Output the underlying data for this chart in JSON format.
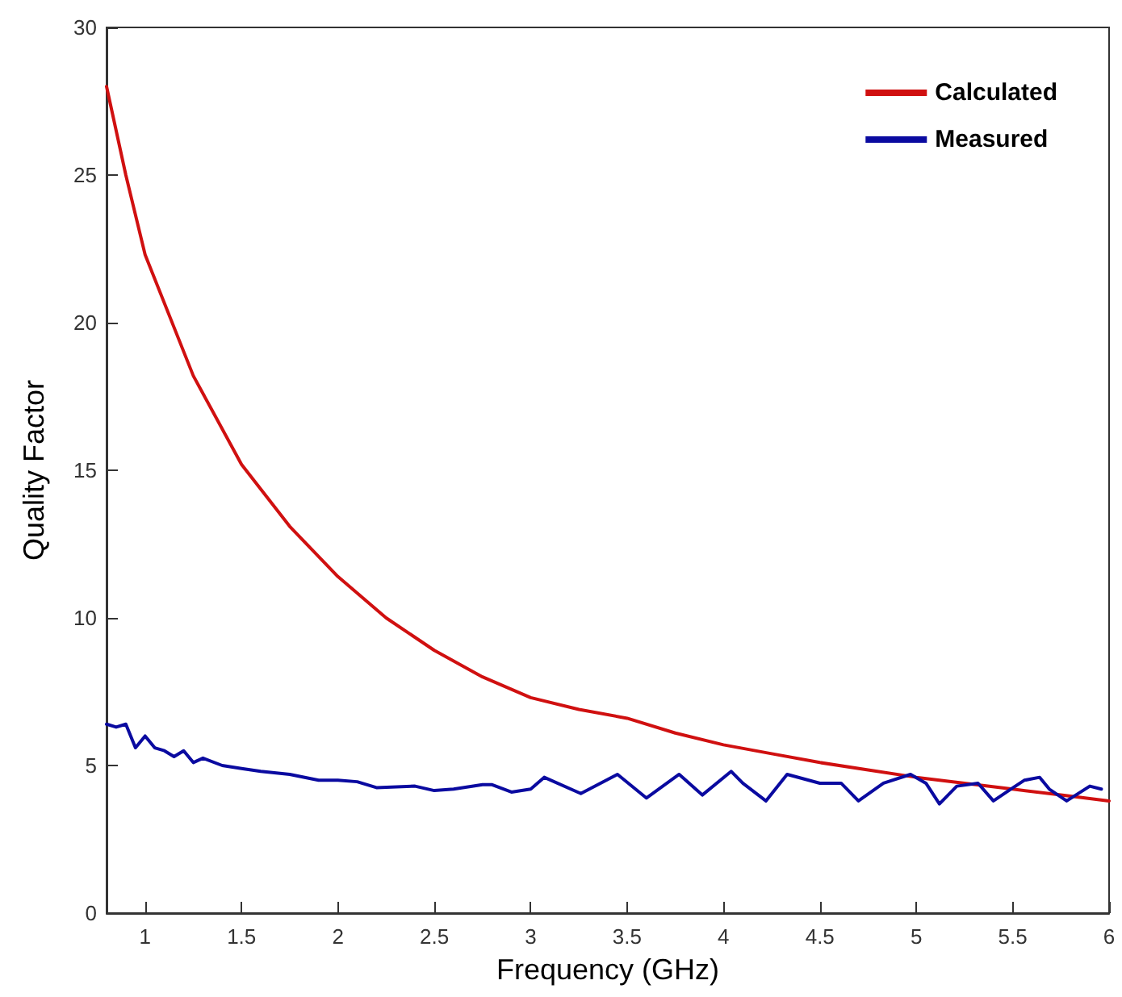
{
  "chart_data": {
    "type": "line",
    "xlabel": "Frequency (GHz)",
    "ylabel": "Quality Factor",
    "xlim": [
      0.8,
      6
    ],
    "xticks": [
      1,
      1.5,
      2,
      2.5,
      3,
      3.5,
      4,
      4.5,
      5,
      5.5,
      6
    ],
    "ylim": [
      0,
      30
    ],
    "yticks": [
      0,
      5,
      10,
      15,
      20,
      25,
      30
    ],
    "grid": false,
    "legend": "top right",
    "marker": "none",
    "line_style": "solid",
    "series": [
      {
        "name": "Calculated",
        "color": "#d01010",
        "x": [
          0.8,
          0.9,
          1,
          1.25,
          1.5,
          1.75,
          2,
          2.25,
          2.5,
          2.75,
          3,
          3.25,
          3.5,
          3.75,
          4,
          4.25,
          4.5,
          4.75,
          5,
          5.25,
          5.5,
          5.75,
          6
        ],
        "values": [
          28,
          25,
          22.3,
          18.2,
          15.2,
          13.1,
          11.4,
          10,
          8.9,
          8,
          7.3,
          6.9,
          6.6,
          6.1,
          5.7,
          5.4,
          5.1,
          4.85,
          4.6,
          4.4,
          4.2,
          4,
          3.8
        ]
      },
      {
        "name": "Measured",
        "color": "#0a0aa0",
        "x": [
          0.8,
          0.85,
          0.9,
          0.95,
          1,
          1.05,
          1.1,
          1.15,
          1.2,
          1.25,
          1.3,
          1.4,
          1.5,
          1.6,
          1.75,
          1.9,
          2,
          2.1,
          2.2,
          2.4,
          2.5,
          2.6,
          2.75,
          2.8,
          2.9,
          3,
          3.07,
          3.26,
          3.45,
          3.6,
          3.77,
          3.89,
          4.04,
          4.1,
          4.22,
          4.33,
          4.5,
          4.61,
          4.7,
          4.83,
          4.97,
          5.05,
          5.12,
          5.21,
          5.32,
          5.4,
          5.49,
          5.56,
          5.64,
          5.69,
          5.78,
          5.9,
          5.96
        ],
        "values": [
          6.4,
          6.3,
          6.4,
          5.6,
          6,
          5.6,
          5.5,
          5.3,
          5.5,
          5.1,
          5.25,
          5,
          4.9,
          4.8,
          4.7,
          4.5,
          4.5,
          4.45,
          4.25,
          4.3,
          4.15,
          4.2,
          4.35,
          4.35,
          4.1,
          4.2,
          4.6,
          4.05,
          4.7,
          3.9,
          4.7,
          4,
          4.8,
          4.4,
          3.8,
          4.7,
          4.4,
          4.4,
          3.8,
          4.4,
          4.7,
          4.4,
          3.7,
          4.3,
          4.4,
          3.8,
          4.2,
          4.5,
          4.6,
          4.2,
          3.8,
          4.3,
          4.2
        ]
      }
    ]
  }
}
